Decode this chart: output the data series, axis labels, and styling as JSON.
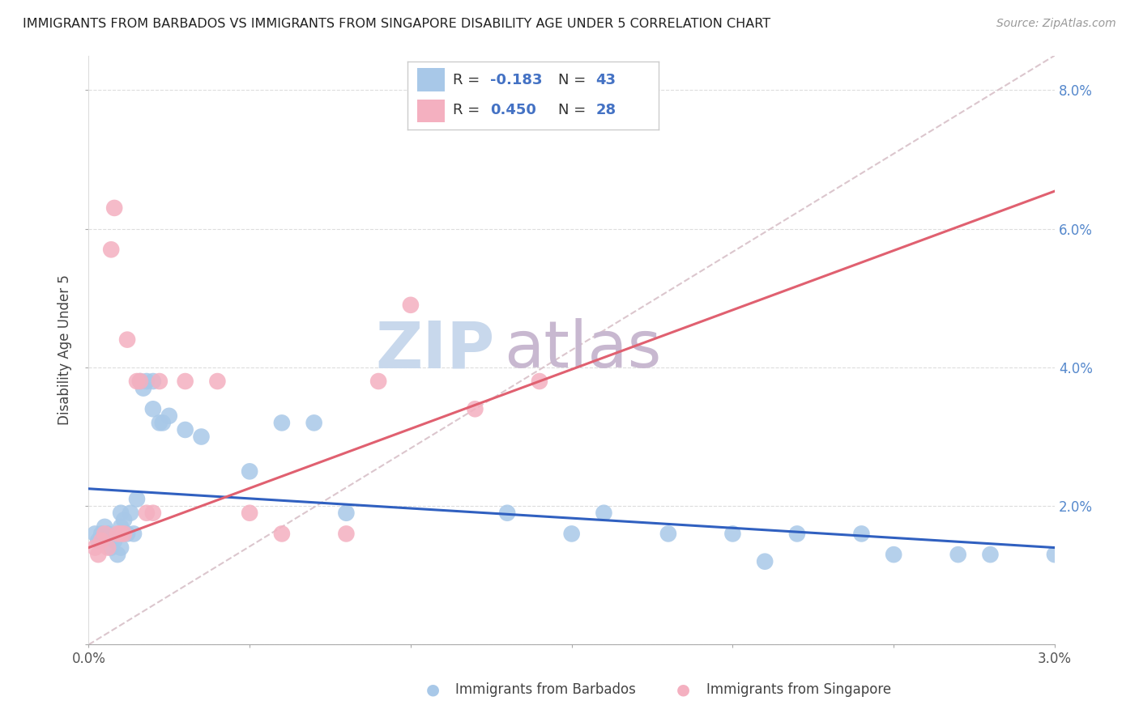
{
  "title": "IMMIGRANTS FROM BARBADOS VS IMMIGRANTS FROM SINGAPORE DISABILITY AGE UNDER 5 CORRELATION CHART",
  "source": "Source: ZipAtlas.com",
  "ylabel": "Disability Age Under 5",
  "xmin": 0.0,
  "xmax": 0.03,
  "ymin": 0.0,
  "ymax": 0.085,
  "barbados_color": "#a8c8e8",
  "singapore_color": "#f4b0c0",
  "barbados_line_color": "#3060c0",
  "singapore_line_color": "#e06070",
  "dash_line_color": "#d8c0c8",
  "watermark_zip_color": "#c8d8ec",
  "watermark_atlas_color": "#c8b8d0",
  "background_color": "#ffffff",
  "grid_color": "#dddddd",
  "barbados_x": [
    0.0002,
    0.0003,
    0.0004,
    0.0005,
    0.0006,
    0.0007,
    0.0008,
    0.0009,
    0.001,
    0.001,
    0.001,
    0.0011,
    0.0012,
    0.0013,
    0.0014,
    0.0015,
    0.0016,
    0.0017,
    0.0018,
    0.002,
    0.002,
    0.0022,
    0.0023,
    0.0025,
    0.003,
    0.0035,
    0.005,
    0.006,
    0.007,
    0.008,
    0.013,
    0.015,
    0.016,
    0.018,
    0.02,
    0.021,
    0.022,
    0.024,
    0.025,
    0.027,
    0.028,
    0.03
  ],
  "barbados_y": [
    0.016,
    0.015,
    0.016,
    0.017,
    0.016,
    0.014,
    0.015,
    0.013,
    0.019,
    0.017,
    0.014,
    0.018,
    0.016,
    0.019,
    0.016,
    0.021,
    0.038,
    0.037,
    0.038,
    0.038,
    0.034,
    0.032,
    0.032,
    0.033,
    0.031,
    0.03,
    0.025,
    0.032,
    0.032,
    0.019,
    0.019,
    0.016,
    0.019,
    0.016,
    0.016,
    0.012,
    0.016,
    0.016,
    0.013,
    0.013,
    0.013,
    0.013
  ],
  "singapore_x": [
    0.0002,
    0.0003,
    0.0004,
    0.0005,
    0.0006,
    0.0007,
    0.0008,
    0.0009,
    0.001,
    0.0011,
    0.0012,
    0.0015,
    0.0016,
    0.0018,
    0.002,
    0.0022,
    0.003,
    0.004,
    0.005,
    0.006,
    0.008,
    0.009,
    0.01,
    0.012,
    0.014
  ],
  "singapore_y": [
    0.014,
    0.013,
    0.015,
    0.016,
    0.014,
    0.057,
    0.063,
    0.016,
    0.016,
    0.016,
    0.044,
    0.038,
    0.038,
    0.019,
    0.019,
    0.038,
    0.038,
    0.038,
    0.019,
    0.016,
    0.016,
    0.038,
    0.049,
    0.034,
    0.038
  ]
}
